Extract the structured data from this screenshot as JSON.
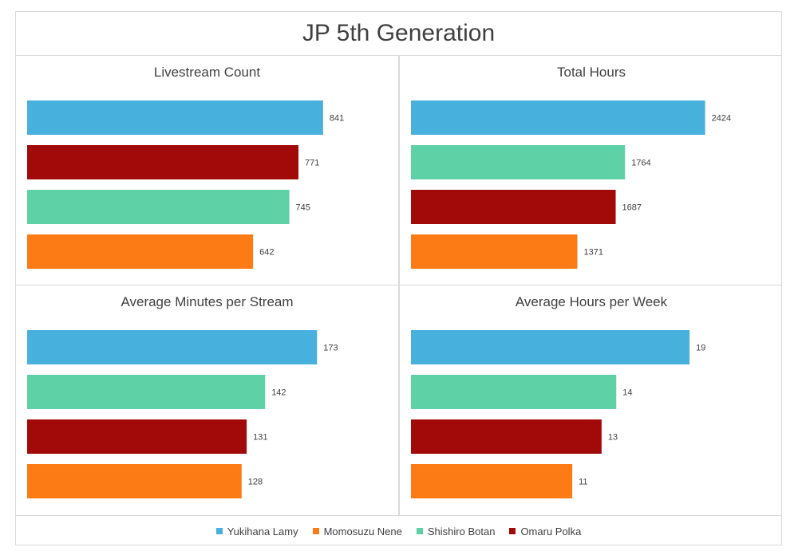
{
  "chart_data": {
    "type": "bar",
    "title": "JP 5th Generation",
    "legend": [
      {
        "name": "Yukihana Lamy",
        "color": "#47b0dd"
      },
      {
        "name": "Momosuzu Nene",
        "color": "#fd7b14"
      },
      {
        "name": "Shishiro Botan",
        "color": "#5fd1a6"
      },
      {
        "name": "Omaru Polka",
        "color": "#a20a0a"
      }
    ],
    "legend_position": "bottom",
    "panels": [
      {
        "title": "Livestream Count",
        "xlim": [
          0,
          1000
        ],
        "bars": [
          {
            "series": "Yukihana Lamy",
            "value": 841
          },
          {
            "series": "Omaru Polka",
            "value": 771
          },
          {
            "series": "Shishiro Botan",
            "value": 745
          },
          {
            "series": "Momosuzu Nene",
            "value": 642
          }
        ]
      },
      {
        "title": "Total Hours",
        "xlim": [
          0,
          2900
        ],
        "bars": [
          {
            "series": "Yukihana Lamy",
            "value": 2424
          },
          {
            "series": "Shishiro Botan",
            "value": 1764
          },
          {
            "series": "Omaru Polka",
            "value": 1687
          },
          {
            "series": "Momosuzu Nene",
            "value": 1371
          }
        ]
      },
      {
        "title": "Average Minutes per Stream",
        "xlim": [
          0,
          210
        ],
        "bars": [
          {
            "series": "Yukihana Lamy",
            "value": 173
          },
          {
            "series": "Shishiro Botan",
            "value": 142
          },
          {
            "series": "Omaru Polka",
            "value": 131
          },
          {
            "series": "Momosuzu Nene",
            "value": 128
          }
        ]
      },
      {
        "title": "Average Hours per Week",
        "xlim": [
          0,
          24
        ],
        "bars": [
          {
            "series": "Yukihana Lamy",
            "value": 19
          },
          {
            "series": "Shishiro Botan",
            "value": 14
          },
          {
            "series": "Omaru Polka",
            "value": 13
          },
          {
            "series": "Momosuzu Nene",
            "value": 11
          }
        ]
      }
    ]
  }
}
